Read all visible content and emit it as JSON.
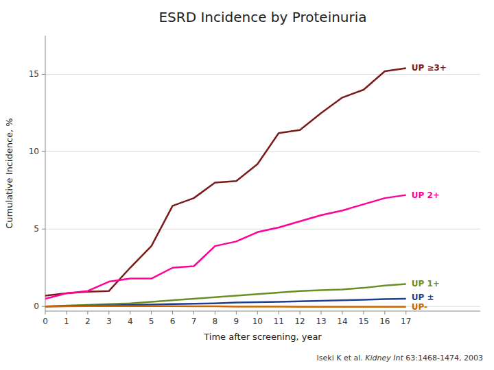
{
  "chart_data": {
    "type": "line",
    "title": "ESRD Incidence by Proteinuria",
    "x_label": "Time after screening, year",
    "y_label": "Cumulative Incidence, %",
    "x": [
      0,
      1,
      2,
      3,
      4,
      5,
      6,
      7,
      8,
      9,
      10,
      11,
      12,
      13,
      14,
      15,
      16,
      17
    ],
    "series": [
      {
        "name": "UP ≥3+",
        "color": "#7B1A1A",
        "values": [
          0.7,
          0.85,
          0.95,
          1.0,
          2.5,
          3.9,
          6.5,
          7.0,
          8.0,
          8.1,
          9.2,
          11.2,
          11.4,
          12.5,
          13.5,
          14.0,
          15.2,
          15.4
        ]
      },
      {
        "name": "UP 2+",
        "color": "#FF0099",
        "values": [
          0.5,
          0.85,
          1.0,
          1.6,
          1.8,
          1.8,
          2.5,
          2.6,
          3.9,
          4.2,
          4.8,
          5.1,
          5.5,
          5.9,
          6.2,
          6.6,
          7.0,
          7.2
        ]
      },
      {
        "name": "UP 1+",
        "color": "#6B8E23",
        "values": [
          0.0,
          0.05,
          0.1,
          0.15,
          0.2,
          0.3,
          0.4,
          0.5,
          0.6,
          0.7,
          0.8,
          0.9,
          1.0,
          1.05,
          1.1,
          1.2,
          1.35,
          1.45
        ]
      },
      {
        "name": "UP ±",
        "color": "#1F3F8C",
        "values": [
          0.0,
          0.02,
          0.05,
          0.07,
          0.1,
          0.12,
          0.15,
          0.18,
          0.2,
          0.25,
          0.28,
          0.3,
          0.33,
          0.36,
          0.4,
          0.43,
          0.48,
          0.5
        ]
      },
      {
        "name": "UP-",
        "color": "#CC6600",
        "values": [
          0.0,
          0.01,
          0.02,
          0.025,
          0.025,
          0.025,
          0.02,
          0.01,
          0.005,
          -0.01,
          -0.01,
          -0.015,
          -0.02,
          -0.02,
          -0.02,
          -0.02,
          -0.02,
          -0.02
        ]
      }
    ],
    "xlim": [
      0,
      20.5
    ],
    "ylim": [
      -0.3,
      17.5
    ],
    "xticks": [
      0,
      1,
      2,
      3,
      4,
      5,
      6,
      7,
      8,
      9,
      10,
      11,
      12,
      13,
      14,
      15,
      16,
      17
    ],
    "yticks": [
      0,
      5,
      10,
      15
    ],
    "grid": "y",
    "annotations": [
      "Iseki K et al. ",
      "Kidney Int",
      " 63:1468-1474, 2003"
    ]
  }
}
